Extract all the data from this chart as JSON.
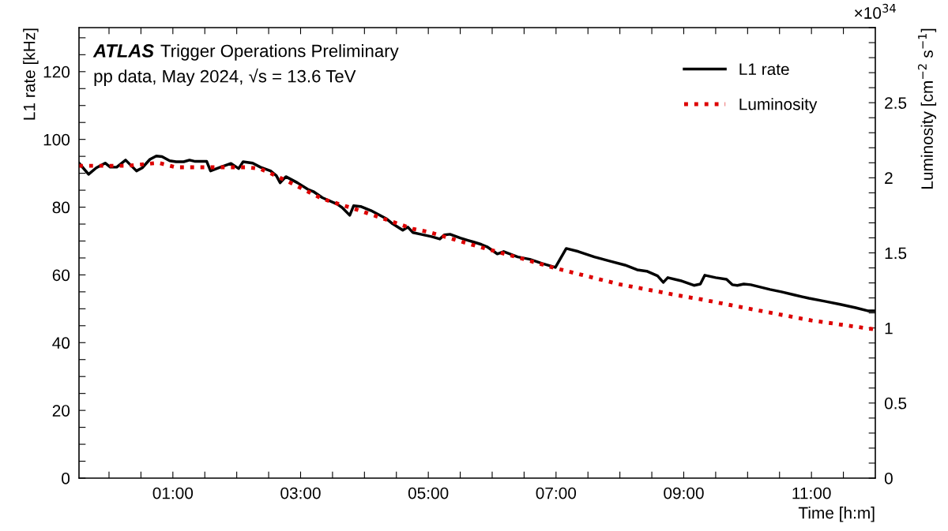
{
  "chart_data": {
    "type": "line",
    "title": "ATLAS Trigger Operations Preliminary",
    "subtitle": "pp data, May 2024, √s = 13.6 TeV",
    "xlabel": "Time [h:m]",
    "ylabel": "L1 rate [kHz]",
    "y2label": "Luminosity [cm$^{−2}$ s$^{−1}$]",
    "annotations": [
      "×10$^{34}$"
    ],
    "legend": "top right",
    "grid": false,
    "marker": "none",
    "xlim": [
      -0.47,
      12
    ],
    "ylim": [
      0,
      133
    ],
    "y2lim": [
      0,
      3.0
    ],
    "xticks": [
      {
        "value": 0,
        "label": null
      },
      {
        "value": 0.5,
        "label": null
      },
      {
        "value": 1,
        "label": "01:00"
      },
      {
        "value": 1.5,
        "label": null
      },
      {
        "value": 2,
        "label": null
      },
      {
        "value": 2.5,
        "label": null
      },
      {
        "value": 3,
        "label": "03:00"
      },
      {
        "value": 3.5,
        "label": null
      },
      {
        "value": 4,
        "label": null
      },
      {
        "value": 4.5,
        "label": null
      },
      {
        "value": 5,
        "label": "05:00"
      },
      {
        "value": 5.5,
        "label": null
      },
      {
        "value": 6,
        "label": null
      },
      {
        "value": 6.5,
        "label": null
      },
      {
        "value": 7,
        "label": "07:00"
      },
      {
        "value": 7.5,
        "label": null
      },
      {
        "value": 8,
        "label": null
      },
      {
        "value": 8.5,
        "label": null
      },
      {
        "value": 9,
        "label": "09:00"
      },
      {
        "value": 9.5,
        "label": null
      },
      {
        "value": 10,
        "label": null
      },
      {
        "value": 10.5,
        "label": null
      },
      {
        "value": 11,
        "label": "11:00"
      },
      {
        "value": 11.5,
        "label": null
      }
    ],
    "yticks": [
      0,
      {
        "value": 5,
        "label": null
      },
      {
        "value": 10,
        "label": null
      },
      {
        "value": 15,
        "label": null
      },
      20,
      {
        "value": 25,
        "label": null
      },
      {
        "value": 30,
        "label": null
      },
      {
        "value": 35,
        "label": null
      },
      40,
      {
        "value": 45,
        "label": null
      },
      {
        "value": 50,
        "label": null
      },
      {
        "value": 55,
        "label": null
      },
      60,
      {
        "value": 65,
        "label": null
      },
      {
        "value": 70,
        "label": null
      },
      {
        "value": 75,
        "label": null
      },
      80,
      {
        "value": 85,
        "label": null
      },
      {
        "value": 90,
        "label": null
      },
      {
        "value": 95,
        "label": null
      },
      100,
      {
        "value": 105,
        "label": null
      },
      {
        "value": 110,
        "label": null
      },
      {
        "value": 115,
        "label": null
      },
      120,
      {
        "value": 125,
        "label": null
      },
      {
        "value": 130,
        "label": null
      }
    ],
    "y2ticks": [
      0,
      {
        "value": 0.1,
        "label": null
      },
      {
        "value": 0.2,
        "label": null
      },
      {
        "value": 0.3,
        "label": null
      },
      {
        "value": 0.4,
        "label": null
      },
      0.5,
      {
        "value": 0.6,
        "label": null
      },
      {
        "value": 0.7,
        "label": null
      },
      {
        "value": 0.8,
        "label": null
      },
      {
        "value": 0.9,
        "label": null
      },
      1,
      {
        "value": 1.1,
        "label": null
      },
      {
        "value": 1.2,
        "label": null
      },
      {
        "value": 1.3,
        "label": null
      },
      {
        "value": 1.4,
        "label": null
      },
      1.5,
      {
        "value": 1.6,
        "label": null
      },
      {
        "value": 1.7,
        "label": null
      },
      {
        "value": 1.8,
        "label": null
      },
      {
        "value": 1.9,
        "label": null
      },
      2,
      {
        "value": 2.1,
        "label": null
      },
      {
        "value": 2.2,
        "label": null
      },
      {
        "value": 2.3,
        "label": null
      },
      {
        "value": 2.4,
        "label": null
      },
      2.5,
      {
        "value": 2.6,
        "label": null
      },
      {
        "value": 2.7,
        "label": null
      },
      {
        "value": 2.8,
        "label": null
      },
      {
        "value": 2.9,
        "label": null
      },
      {
        "value": 3.0,
        "label": null
      }
    ],
    "series": [
      {
        "name": "L1 rate",
        "color": "#000000",
        "line_style": "solid",
        "x": [
          -0.47,
          -0.32,
          -0.2,
          -0.06,
          0.02,
          0.12,
          0.26,
          0.43,
          0.52,
          0.64,
          0.74,
          0.83,
          0.95,
          1.05,
          1.17,
          1.26,
          1.35,
          1.53,
          1.59,
          1.72,
          1.91,
          2.03,
          2.1,
          2.25,
          2.37,
          2.53,
          2.62,
          2.68,
          2.77,
          2.95,
          3.11,
          3.2,
          3.34,
          3.57,
          3.65,
          3.77,
          3.83,
          3.94,
          4.1,
          4.35,
          4.44,
          4.6,
          4.68,
          4.76,
          4.88,
          5.05,
          5.18,
          5.25,
          5.34,
          5.5,
          5.62,
          5.71,
          5.83,
          5.92,
          6.08,
          6.18,
          6.4,
          6.59,
          6.78,
          6.99,
          7.16,
          7.35,
          7.6,
          7.84,
          8.08,
          8.27,
          8.42,
          8.59,
          8.68,
          8.75,
          8.95,
          9.16,
          9.26,
          9.33,
          9.5,
          9.67,
          9.76,
          9.84,
          9.94,
          10.05,
          10.2,
          10.35,
          10.53,
          10.73,
          10.96,
          11.21,
          11.45,
          11.69,
          11.88,
          12
        ],
        "values": [
          93.0,
          89.7,
          91.6,
          93.0,
          91.8,
          91.8,
          93.9,
          90.7,
          91.6,
          94.1,
          95.1,
          94.9,
          93.7,
          93.4,
          93.4,
          93.9,
          93.5,
          93.5,
          90.7,
          91.6,
          92.9,
          91.4,
          93.4,
          93.0,
          91.8,
          90.7,
          89.3,
          87.2,
          89.0,
          87.2,
          85.3,
          84.6,
          82.8,
          80.9,
          79.9,
          77.6,
          80.4,
          80.2,
          79.0,
          76.5,
          75.1,
          73.2,
          74.1,
          72.5,
          72.0,
          71.3,
          70.6,
          71.8,
          72.0,
          70.9,
          70.2,
          69.7,
          69.0,
          68.3,
          66.2,
          66.9,
          65.3,
          64.6,
          63.4,
          62.2,
          67.8,
          66.9,
          65.3,
          64.1,
          62.9,
          61.5,
          61.1,
          59.7,
          57.8,
          59.2,
          58.3,
          56.9,
          57.3,
          59.9,
          59.2,
          58.7,
          57.1,
          56.9,
          57.3,
          57.1,
          56.4,
          55.7,
          55.0,
          54.1,
          53.1,
          52.2,
          51.3,
          50.3,
          49.4,
          49.4
        ]
      },
      {
        "name": "Luminosity",
        "color": "#dd0000",
        "line_style": "dotted",
        "axis": "y2",
        "x": [
          -0.47,
          0.3,
          0.77,
          1.05,
          1.6,
          2.16,
          2.37,
          2.53,
          2.78,
          3.34,
          3.94,
          4.76,
          5.0,
          5.8,
          6.4,
          6.97,
          8.0,
          9.0,
          9.28,
          10.0,
          11.0,
          12
        ],
        "values": [
          2.08,
          2.08,
          2.1,
          2.07,
          2.07,
          2.07,
          2.06,
          2.03,
          1.98,
          1.86,
          1.78,
          1.66,
          1.64,
          1.54,
          1.47,
          1.4,
          1.29,
          1.21,
          1.19,
          1.13,
          1.05,
          0.99
        ]
      }
    ]
  }
}
